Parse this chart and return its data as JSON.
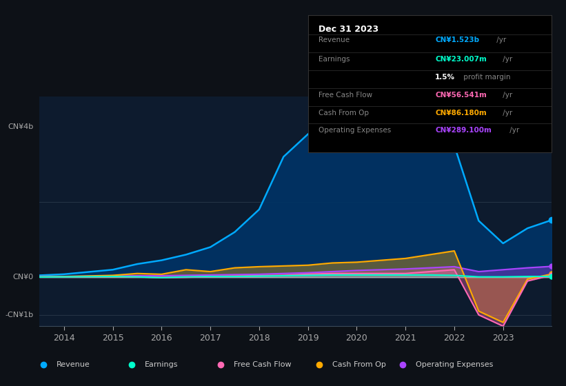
{
  "background_color": "#0d1117",
  "plot_bg_color": "#0d1b2e",
  "years": [
    2013.5,
    2014,
    2015,
    2015.5,
    2016,
    2016.5,
    2017,
    2017.5,
    2018,
    2018.5,
    2019,
    2019.5,
    2020,
    2020.5,
    2021,
    2021.5,
    2022,
    2022.5,
    2023,
    2023.5,
    2024
  ],
  "revenue": [
    0.05,
    0.08,
    0.2,
    0.35,
    0.45,
    0.6,
    0.8,
    1.2,
    1.8,
    3.2,
    3.8,
    4.3,
    4.5,
    4.4,
    4.2,
    4.1,
    3.5,
    1.5,
    0.9,
    1.3,
    1.52
  ],
  "earnings": [
    0.005,
    0.01,
    0.02,
    0.01,
    -0.01,
    0.01,
    0.02,
    0.02,
    0.03,
    0.04,
    0.05,
    0.06,
    0.06,
    0.06,
    0.06,
    0.06,
    0.05,
    0.01,
    0.01,
    0.02,
    0.023
  ],
  "free_cash_flow": [
    0.01,
    0.01,
    0.02,
    0.01,
    -0.01,
    0.0,
    0.02,
    0.03,
    0.04,
    0.05,
    0.08,
    0.1,
    0.1,
    0.1,
    0.1,
    0.15,
    0.2,
    -1.0,
    -1.3,
    -0.1,
    0.056
  ],
  "cash_from_op": [
    0.01,
    0.02,
    0.05,
    0.1,
    0.08,
    0.2,
    0.15,
    0.25,
    0.28,
    0.3,
    0.32,
    0.38,
    0.4,
    0.45,
    0.5,
    0.6,
    0.7,
    -0.9,
    -1.2,
    -0.05,
    0.086
  ],
  "operating_expenses": [
    0.01,
    0.02,
    0.03,
    0.04,
    0.04,
    0.05,
    0.06,
    0.07,
    0.08,
    0.1,
    0.12,
    0.15,
    0.18,
    0.2,
    0.22,
    0.25,
    0.28,
    0.15,
    0.2,
    0.25,
    0.289
  ],
  "revenue_color": "#00aaff",
  "earnings_color": "#00ffcc",
  "fcf_color": "#ff69b4",
  "cashop_color": "#ffaa00",
  "opex_color": "#aa44ff",
  "revenue_fill": "#003366",
  "ylim_min": -1.3,
  "ylim_max": 4.8,
  "xticks": [
    2014,
    2015,
    2016,
    2017,
    2018,
    2019,
    2020,
    2021,
    2022,
    2023
  ],
  "grid_color": "#2a3a4a",
  "zero_line_color": "#aaaaaa",
  "tooltip_bg": "#000000",
  "tooltip_title": "Dec 31 2023",
  "tooltip_rows": [
    {
      "label": "Revenue",
      "value": "CN¥1.523b",
      "suffix": " /yr",
      "color": "#00aaff"
    },
    {
      "label": "Earnings",
      "value": "CN¥23.007m",
      "suffix": " /yr",
      "color": "#00ffcc"
    },
    {
      "label": "",
      "value": "1.5%",
      "suffix": " profit margin",
      "color": "#ffffff"
    },
    {
      "label": "Free Cash Flow",
      "value": "CN¥56.541m",
      "suffix": " /yr",
      "color": "#ff69b4"
    },
    {
      "label": "Cash From Op",
      "value": "CN¥86.180m",
      "suffix": " /yr",
      "color": "#ffaa00"
    },
    {
      "label": "Operating Expenses",
      "value": "CN¥289.100m",
      "suffix": " /yr",
      "color": "#aa44ff"
    }
  ],
  "legend_items": [
    {
      "label": "Revenue",
      "color": "#00aaff"
    },
    {
      "label": "Earnings",
      "color": "#00ffcc"
    },
    {
      "label": "Free Cash Flow",
      "color": "#ff69b4"
    },
    {
      "label": "Cash From Op",
      "color": "#ffaa00"
    },
    {
      "label": "Operating Expenses",
      "color": "#aa44ff"
    }
  ]
}
